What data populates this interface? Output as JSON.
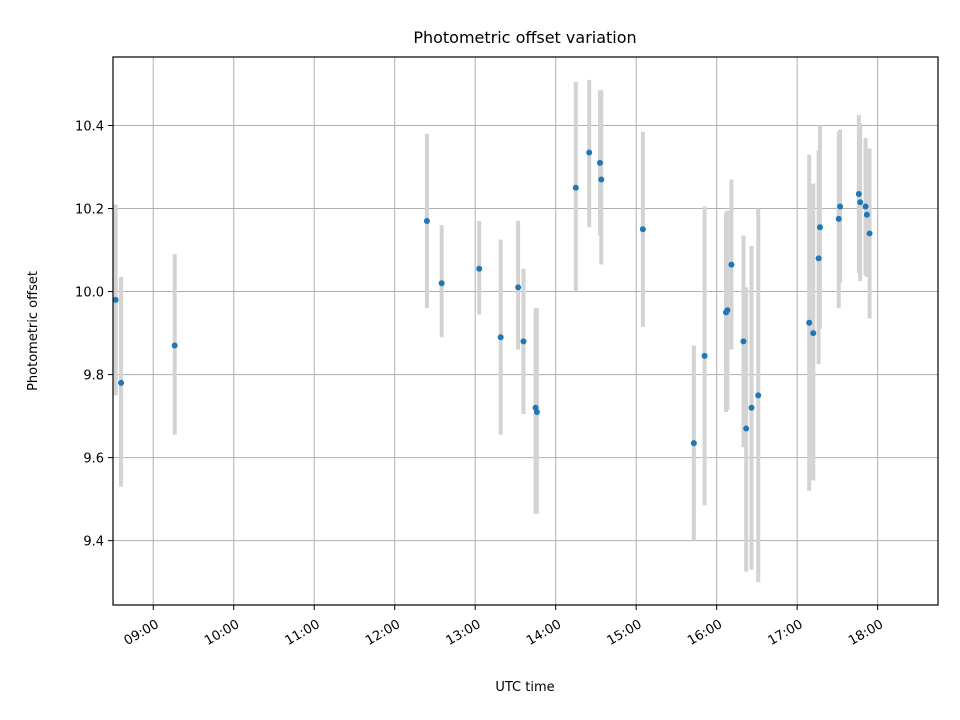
{
  "chart_data": {
    "type": "scatter",
    "title": "Photometric offset variation",
    "xlabel": "UTC time",
    "ylabel": "Photometric offset",
    "xlim": [
      "08:30",
      "18:45"
    ],
    "ylim": [
      9.245,
      10.565
    ],
    "grid": true,
    "x_ticks": [
      "09:00",
      "10:00",
      "11:00",
      "12:00",
      "13:00",
      "14:00",
      "15:00",
      "16:00",
      "17:00",
      "18:00"
    ],
    "y_ticks": [
      "9.4",
      "9.6",
      "9.8",
      "10.0",
      "10.2",
      "10.4"
    ],
    "colors": {
      "point": "#1f77b4",
      "errorbar": "#d3d3d3",
      "grid": "#b0b0b0"
    },
    "series": [
      {
        "points": [
          {
            "x": "08:32",
            "y": 9.98,
            "lo": 9.75,
            "hi": 10.21
          },
          {
            "x": "08:36",
            "y": 9.78,
            "lo": 9.53,
            "hi": 10.035
          },
          {
            "x": "09:16",
            "y": 9.87,
            "lo": 9.655,
            "hi": 10.09
          },
          {
            "x": "12:24",
            "y": 10.17,
            "lo": 9.96,
            "hi": 10.38
          },
          {
            "x": "12:35",
            "y": 10.02,
            "lo": 9.89,
            "hi": 10.16
          },
          {
            "x": "13:03",
            "y": 10.055,
            "lo": 9.945,
            "hi": 10.17
          },
          {
            "x": "13:19",
            "y": 9.89,
            "lo": 9.655,
            "hi": 10.125
          },
          {
            "x": "13:32",
            "y": 10.01,
            "lo": 9.86,
            "hi": 10.17
          },
          {
            "x": "13:36",
            "y": 9.88,
            "lo": 9.705,
            "hi": 10.055
          },
          {
            "x": "13:45",
            "y": 9.72,
            "lo": 9.465,
            "hi": 9.96
          },
          {
            "x": "13:46",
            "y": 9.71,
            "lo": 9.465,
            "hi": 9.96
          },
          {
            "x": "14:15",
            "y": 10.25,
            "lo": 10.0,
            "hi": 10.505
          },
          {
            "x": "14:25",
            "y": 10.335,
            "lo": 10.155,
            "hi": 10.51
          },
          {
            "x": "14:33",
            "y": 10.31,
            "lo": 10.135,
            "hi": 10.485
          },
          {
            "x": "14:34",
            "y": 10.27,
            "lo": 10.065,
            "hi": 10.485
          },
          {
            "x": "15:05",
            "y": 10.15,
            "lo": 9.915,
            "hi": 10.385
          },
          {
            "x": "15:43",
            "y": 9.635,
            "lo": 9.4,
            "hi": 9.87
          },
          {
            "x": "15:51",
            "y": 9.845,
            "lo": 9.485,
            "hi": 10.205
          },
          {
            "x": "16:07",
            "y": 9.95,
            "lo": 9.71,
            "hi": 10.19
          },
          {
            "x": "16:08",
            "y": 9.955,
            "lo": 9.715,
            "hi": 10.195
          },
          {
            "x": "16:11",
            "y": 10.065,
            "lo": 9.86,
            "hi": 10.27
          },
          {
            "x": "16:20",
            "y": 9.88,
            "lo": 9.625,
            "hi": 10.135
          },
          {
            "x": "16:22",
            "y": 9.67,
            "lo": 9.325,
            "hi": 10.01
          },
          {
            "x": "16:26",
            "y": 9.72,
            "lo": 9.33,
            "hi": 10.11
          },
          {
            "x": "16:31",
            "y": 9.75,
            "lo": 9.3,
            "hi": 10.2
          },
          {
            "x": "17:09",
            "y": 9.925,
            "lo": 9.52,
            "hi": 10.33
          },
          {
            "x": "17:12",
            "y": 9.9,
            "lo": 9.545,
            "hi": 10.26
          },
          {
            "x": "17:16",
            "y": 10.08,
            "lo": 9.825,
            "hi": 10.34
          },
          {
            "x": "17:17",
            "y": 10.155,
            "lo": 9.91,
            "hi": 10.4
          },
          {
            "x": "17:31",
            "y": 10.175,
            "lo": 9.96,
            "hi": 10.385
          },
          {
            "x": "17:32",
            "y": 10.205,
            "lo": 10.02,
            "hi": 10.39
          },
          {
            "x": "17:46",
            "y": 10.235,
            "lo": 10.045,
            "hi": 10.425
          },
          {
            "x": "17:47",
            "y": 10.215,
            "lo": 10.025,
            "hi": 10.405
          },
          {
            "x": "17:51",
            "y": 10.205,
            "lo": 10.04,
            "hi": 10.37
          },
          {
            "x": "17:52",
            "y": 10.185,
            "lo": 10.035,
            "hi": 10.34
          },
          {
            "x": "17:54",
            "y": 10.14,
            "lo": 9.935,
            "hi": 10.345
          }
        ]
      }
    ]
  }
}
